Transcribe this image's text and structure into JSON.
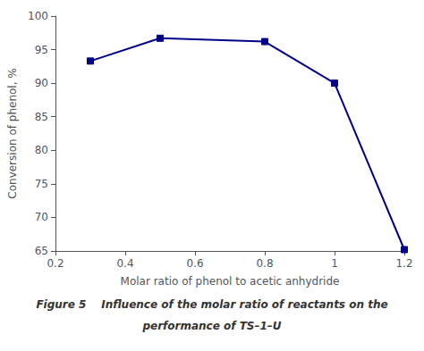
{
  "chart_data": {
    "type": "line",
    "x": [
      0.3,
      0.5,
      0.8,
      1.0,
      1.2
    ],
    "values": [
      93.3,
      96.7,
      96.2,
      90.0,
      65.2
    ],
    "xlim": [
      0.2,
      1.2
    ],
    "ylim": [
      65,
      100
    ],
    "xticks": [
      0.2,
      0.4,
      0.6,
      0.8,
      1.0,
      1.2
    ],
    "yticks": [
      65,
      70,
      75,
      80,
      85,
      90,
      95,
      100
    ],
    "xlabel": "Molar ratio of phenol to acetic anhydride",
    "ylabel": "Conversion of phenol, %",
    "color": "#00008B",
    "marker": "square",
    "grid": false,
    "annotations": [
      "Figure 5    Influence of the molar ratio of reactants on the",
      "performance of TS–1–U"
    ]
  }
}
